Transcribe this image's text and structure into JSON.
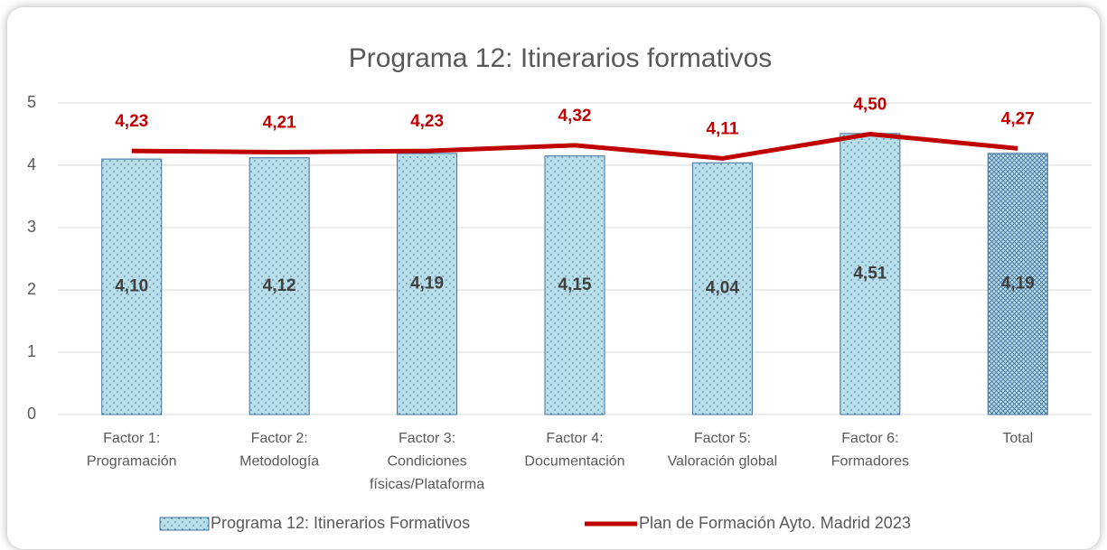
{
  "chart_data": {
    "type": "bar_line",
    "title": "Programa 12: Itinerarios formativos",
    "categories": [
      [
        "Factor 1:",
        "Programación"
      ],
      [
        "Factor 2:",
        "Metodología"
      ],
      [
        "Factor 3:",
        "Condiciones",
        "físicas/Plataforma"
      ],
      [
        "Factor 4:",
        "Documentación"
      ],
      [
        "Factor 5:",
        "Valoración global"
      ],
      [
        "Factor 6:",
        "Formadores"
      ],
      [
        "Total"
      ]
    ],
    "series": [
      {
        "name": "Programa 12: Itinerarios Formativos",
        "type": "bar",
        "color": "#b7dde8",
        "edge_color": "#41719c",
        "point_patterns": [
          "dots",
          "dots",
          "dots",
          "dots",
          "dots",
          "dots",
          "crosshatch"
        ],
        "values": [
          4.1,
          4.12,
          4.19,
          4.15,
          4.04,
          4.51,
          4.19
        ],
        "value_labels": [
          "4,10",
          "4,12",
          "4,19",
          "4,15",
          "4,04",
          "4,51",
          "4,19"
        ]
      },
      {
        "name": "Plan de Formación Ayto. Madrid 2023",
        "type": "line",
        "color": "#c00000",
        "values": [
          4.23,
          4.21,
          4.23,
          4.32,
          4.11,
          4.5,
          4.27
        ],
        "value_labels": [
          "4,23",
          "4,21",
          "4,23",
          "4,32",
          "4,11",
          "4,50",
          "4,27"
        ]
      }
    ],
    "ylim": [
      0,
      5
    ],
    "yticks": [
      0,
      1,
      2,
      3,
      4,
      5
    ],
    "grid": true,
    "legend": "bottom"
  }
}
